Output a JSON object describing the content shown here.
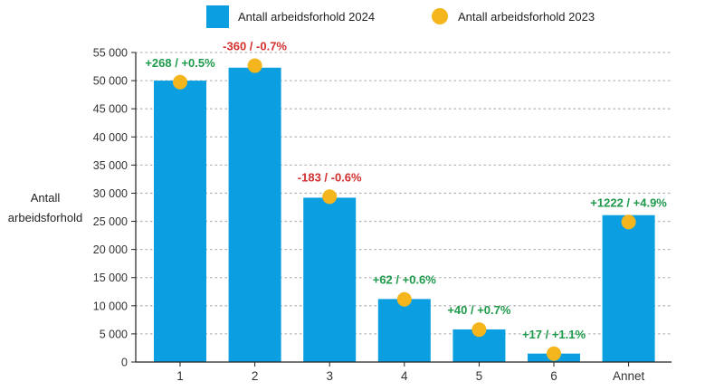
{
  "chart_data": {
    "type": "bar",
    "categories": [
      "1",
      "2",
      "3",
      "4",
      "5",
      "6",
      "Annet"
    ],
    "series": [
      {
        "name": "Antall arbeidsforhold 2024",
        "kind": "bar",
        "color": "#0b9ee0",
        "values": [
          50000,
          52300,
          29200,
          11200,
          5800,
          1500,
          26100
        ]
      },
      {
        "name": "Antall arbeidsforhold 2023",
        "kind": "point",
        "color": "#f5b51c",
        "values": [
          49732,
          52660,
          29383,
          11138,
          5760,
          1483,
          24878
        ]
      }
    ],
    "annotations": [
      {
        "text": "+268 / +0.5%",
        "trend": "up"
      },
      {
        "text": "-360 / -0.7%",
        "trend": "down"
      },
      {
        "text": "-183 / -0.6%",
        "trend": "down"
      },
      {
        "text": "+62 / +0.6%",
        "trend": "up"
      },
      {
        "text": "+40 / +0.7%",
        "trend": "up"
      },
      {
        "text": "+17 / +1.1%",
        "trend": "up"
      },
      {
        "text": "+1222 / +4.9%",
        "trend": "up"
      }
    ],
    "title": "",
    "xlabel": "",
    "ylabel_lines": [
      "Antall",
      "arbeidsforhold"
    ],
    "ylim": [
      0,
      55000
    ],
    "yticks": [
      0,
      5000,
      10000,
      15000,
      20000,
      25000,
      30000,
      35000,
      40000,
      45000,
      50000,
      55000
    ],
    "ytick_labels": [
      "0",
      "5 000",
      "10 000",
      "15 000",
      "20 000",
      "25 000",
      "30 000",
      "35 000",
      "40 000",
      "45 000",
      "50 000",
      "55 000"
    ],
    "grid": "horizontal-dotted",
    "legend_position": "top-center",
    "colors": {
      "up": "#1e9a4b",
      "down": "#d32f2f",
      "grid": "#b5b5b5",
      "axis": "#222222"
    }
  }
}
